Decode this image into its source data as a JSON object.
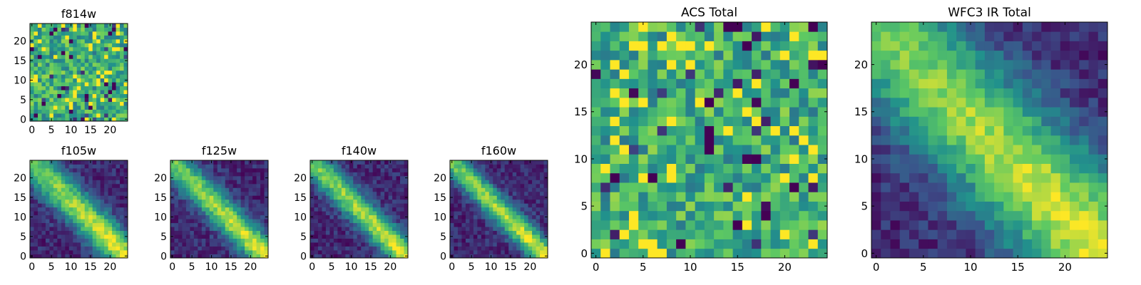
{
  "chart_data": [
    {
      "type": "heatmap",
      "title": "f814w",
      "pattern": "noise",
      "seed": 11,
      "xticks": [
        0,
        5,
        10,
        15,
        20
      ],
      "yticks": [
        0,
        5,
        10,
        15,
        20
      ],
      "xlim": [
        -0.5,
        24.5
      ],
      "ylim": [
        -0.5,
        24.5
      ],
      "grid_size": 25,
      "colormap": [
        "#440154",
        "#3b528b",
        "#21918c",
        "#5ec962",
        "#fde725"
      ]
    },
    {
      "type": "heatmap",
      "title": "f105w",
      "pattern": "diagonal",
      "seed": 21,
      "band_width": 3.0,
      "xticks": [
        0,
        5,
        10,
        15,
        20
      ],
      "yticks": [
        0,
        5,
        10,
        15,
        20
      ],
      "xlim": [
        -0.5,
        24.5
      ],
      "ylim": [
        -0.5,
        24.5
      ],
      "grid_size": 25
    },
    {
      "type": "heatmap",
      "title": "f125w",
      "pattern": "diagonal",
      "seed": 31,
      "band_width": 2.6,
      "xticks": [
        0,
        5,
        10,
        15,
        20
      ],
      "yticks": [
        0,
        5,
        10,
        15,
        20
      ],
      "xlim": [
        -0.5,
        24.5
      ],
      "ylim": [
        -0.5,
        24.5
      ],
      "grid_size": 25
    },
    {
      "type": "heatmap",
      "title": "f140w",
      "pattern": "diagonal",
      "seed": 41,
      "band_width": 2.4,
      "xticks": [
        0,
        5,
        10,
        15,
        20
      ],
      "yticks": [
        0,
        5,
        10,
        15,
        20
      ],
      "xlim": [
        -0.5,
        24.5
      ],
      "ylim": [
        -0.5,
        24.5
      ],
      "grid_size": 25
    },
    {
      "type": "heatmap",
      "title": "f160w",
      "pattern": "diagonal",
      "seed": 51,
      "band_width": 2.2,
      "xticks": [
        0,
        5,
        10,
        15,
        20
      ],
      "yticks": [
        0,
        5,
        10,
        15,
        20
      ],
      "xlim": [
        -0.5,
        24.5
      ],
      "ylim": [
        -0.5,
        24.5
      ],
      "grid_size": 25
    },
    {
      "type": "heatmap",
      "title": "ACS Total",
      "pattern": "noise",
      "seed": 61,
      "xticks": [
        0,
        5,
        10,
        15,
        20
      ],
      "yticks": [
        0,
        5,
        10,
        15,
        20
      ],
      "xlim": [
        -0.5,
        24.5
      ],
      "ylim": [
        -0.5,
        24.5
      ],
      "grid_size": 25
    },
    {
      "type": "heatmap",
      "title": "WFC3 IR Total",
      "pattern": "diagonal",
      "seed": 71,
      "band_width": 4.5,
      "xticks": [
        0,
        5,
        10,
        15,
        20
      ],
      "yticks": [
        0,
        5,
        10,
        15,
        20
      ],
      "xlim": [
        -0.5,
        24.5
      ],
      "ylim": [
        -0.5,
        24.5
      ],
      "grid_size": 25
    }
  ]
}
